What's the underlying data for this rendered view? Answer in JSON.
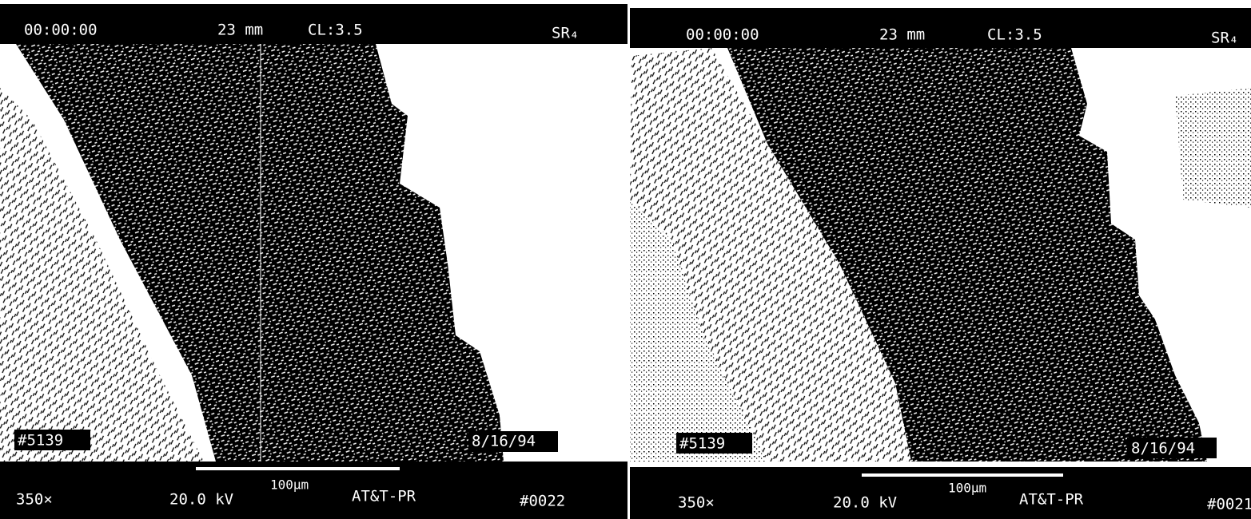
{
  "panels": [
    {
      "header": {
        "time": "00:00:00",
        "distance": "23 mm",
        "cl": "CL:3.5",
        "mode": "SR₄"
      },
      "labels": {
        "id": "#5139",
        "date": "8/16/94"
      },
      "footer": {
        "magnification": "350×",
        "voltage": "20.0 kV",
        "scale": "100μm",
        "lab": "AT&T-PR",
        "number": "#0022"
      }
    },
    {
      "header": {
        "time": "00:00:00",
        "distance": "23 mm",
        "cl": "CL:3.5",
        "mode": "SR₄"
      },
      "labels": {
        "id": "#5139",
        "date": "8/16/94"
      },
      "footer": {
        "magnification": "350×",
        "voltage": "20.0 kV",
        "scale": "100μm",
        "lab": "AT&T-PR",
        "number": "#0021"
      }
    }
  ]
}
